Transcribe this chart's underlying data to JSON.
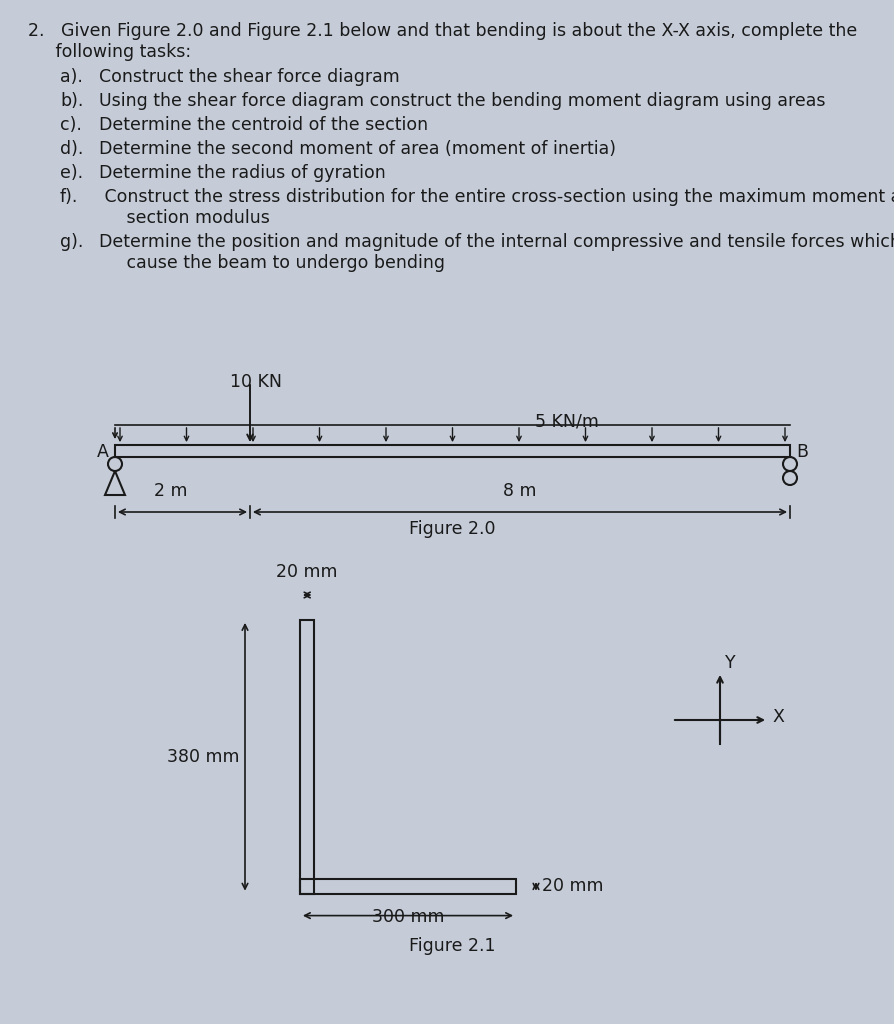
{
  "bg_color": "#c5ccd8",
  "text_color": "#1a1a1a",
  "fig20_label": "Figure 2.0",
  "fig21_label": "Figure 2.1",
  "beam_load_point": "10 KN",
  "beam_load_dist": "5 KN/m",
  "beam_dim1": "2 m",
  "beam_dim2": "8 m",
  "section_width_top": "20 mm",
  "section_height": "380 mm",
  "section_width_bottom": "300 mm",
  "section_thickness_bottom": "20 mm",
  "label_A": "A",
  "label_B": "B",
  "label_Y": "Y",
  "label_X": "X",
  "title_line1": "2.   Given Figure 2.0 and Figure 2.1 below and that bending is about the X-X axis, complete the",
  "title_line2": "     following tasks:",
  "tasks": [
    [
      "a).",
      "  Construct the shear force diagram",
      false
    ],
    [
      "b).",
      "  Using the shear force diagram construct the bending moment diagram using areas",
      false
    ],
    [
      "c).",
      "  Determine the centroid of the section",
      false
    ],
    [
      "d).",
      "  Determine the second moment of area (moment of inertia)",
      false
    ],
    [
      "e).",
      "  Determine the radius of gyration",
      false
    ],
    [
      "f).",
      "   Construct the stress distribution for the entire cross-section using the maximum moment and",
      true
    ],
    [
      "g).",
      "  Determine the position and magnitude of the internal compressive and tensile forces which",
      true
    ]
  ],
  "task_continuations": [
    "       section modulus",
    "       cause the beam to undergo bending"
  ]
}
